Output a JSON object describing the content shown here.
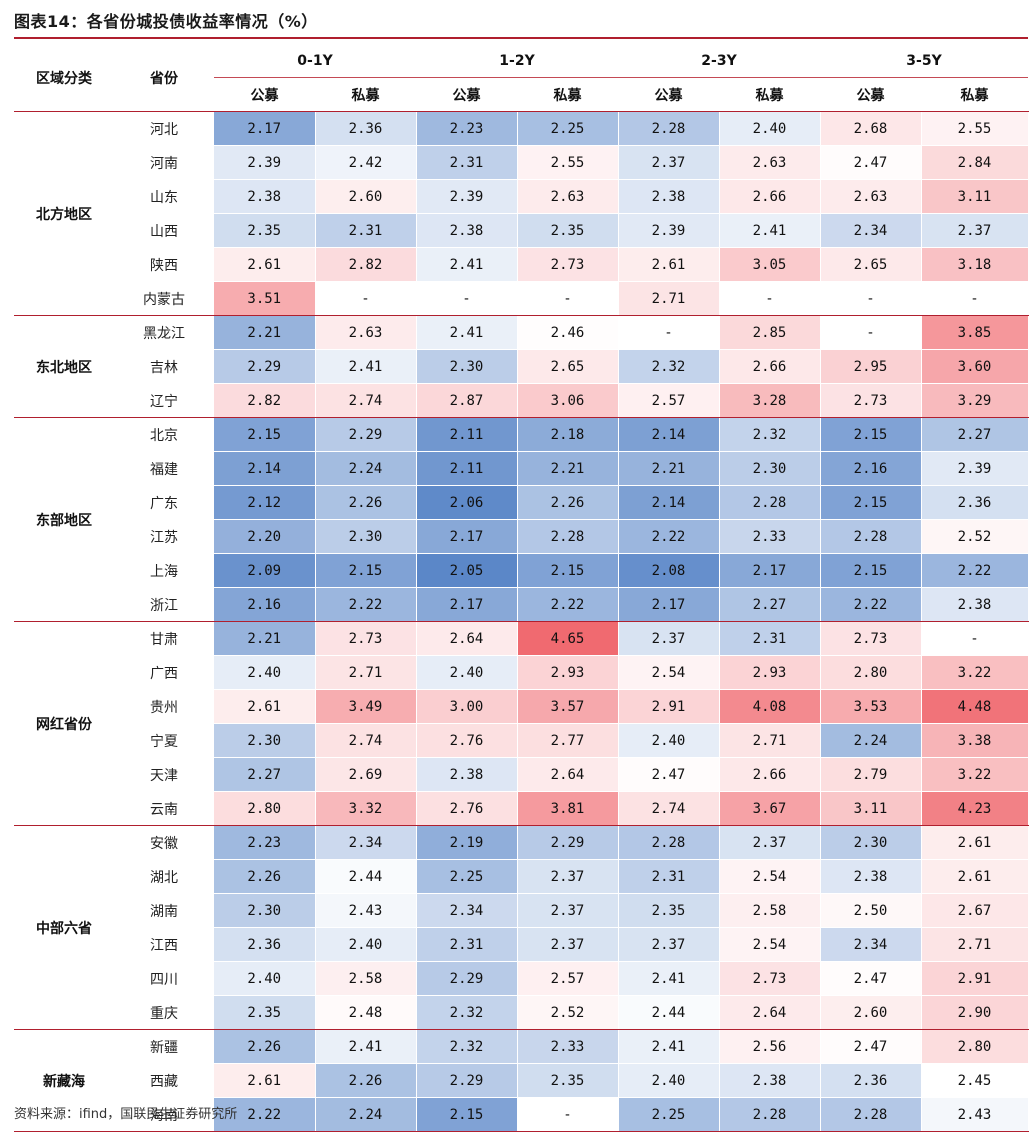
{
  "title": "图表14：各省份城投债收益率情况（%）",
  "source": "资料来源：ifind，国联民生证券研究所",
  "colors": {
    "low": "#5b87c8",
    "mid": "#ffffff",
    "high": "#f06a70",
    "rule": "#b01f2e"
  },
  "header": {
    "region_col": "区域分类",
    "province_col": "省份",
    "tenors": [
      "0-1Y",
      "1-2Y",
      "2-3Y",
      "3-5Y"
    ],
    "types": [
      "公募",
      "私募"
    ]
  },
  "groups": [
    {
      "region": "北方地区",
      "rows": [
        {
          "province": "河北",
          "values": [
            "2.17",
            "2.36",
            "2.23",
            "2.25",
            "2.28",
            "2.40",
            "2.68",
            "2.55"
          ]
        },
        {
          "province": "河南",
          "values": [
            "2.39",
            "2.42",
            "2.31",
            "2.55",
            "2.37",
            "2.63",
            "2.47",
            "2.84"
          ]
        },
        {
          "province": "山东",
          "values": [
            "2.38",
            "2.60",
            "2.39",
            "2.63",
            "2.38",
            "2.66",
            "2.63",
            "3.11"
          ]
        },
        {
          "province": "山西",
          "values": [
            "2.35",
            "2.31",
            "2.38",
            "2.35",
            "2.39",
            "2.41",
            "2.34",
            "2.37"
          ]
        },
        {
          "province": "陕西",
          "values": [
            "2.61",
            "2.82",
            "2.41",
            "2.73",
            "2.61",
            "3.05",
            "2.65",
            "3.18"
          ]
        },
        {
          "province": "内蒙古",
          "values": [
            "3.51",
            "-",
            "-",
            "-",
            "2.71",
            "-",
            "-",
            "-"
          ]
        }
      ]
    },
    {
      "region": "东北地区",
      "rows": [
        {
          "province": "黑龙江",
          "values": [
            "2.21",
            "2.63",
            "2.41",
            "2.46",
            "-",
            "2.85",
            "-",
            "3.85"
          ]
        },
        {
          "province": "吉林",
          "values": [
            "2.29",
            "2.41",
            "2.30",
            "2.65",
            "2.32",
            "2.66",
            "2.95",
            "3.60"
          ]
        },
        {
          "province": "辽宁",
          "values": [
            "2.82",
            "2.74",
            "2.87",
            "3.06",
            "2.57",
            "3.28",
            "2.73",
            "3.29"
          ]
        }
      ]
    },
    {
      "region": "东部地区",
      "rows": [
        {
          "province": "北京",
          "values": [
            "2.15",
            "2.29",
            "2.11",
            "2.18",
            "2.14",
            "2.32",
            "2.15",
            "2.27"
          ]
        },
        {
          "province": "福建",
          "values": [
            "2.14",
            "2.24",
            "2.11",
            "2.21",
            "2.21",
            "2.30",
            "2.16",
            "2.39"
          ]
        },
        {
          "province": "广东",
          "values": [
            "2.12",
            "2.26",
            "2.06",
            "2.26",
            "2.14",
            "2.28",
            "2.15",
            "2.36"
          ]
        },
        {
          "province": "江苏",
          "values": [
            "2.20",
            "2.30",
            "2.17",
            "2.28",
            "2.22",
            "2.33",
            "2.28",
            "2.52"
          ]
        },
        {
          "province": "上海",
          "values": [
            "2.09",
            "2.15",
            "2.05",
            "2.15",
            "2.08",
            "2.17",
            "2.15",
            "2.22"
          ]
        },
        {
          "province": "浙江",
          "values": [
            "2.16",
            "2.22",
            "2.17",
            "2.22",
            "2.17",
            "2.27",
            "2.22",
            "2.38"
          ]
        }
      ]
    },
    {
      "region": "网红省份",
      "rows": [
        {
          "province": "甘肃",
          "values": [
            "2.21",
            "2.73",
            "2.64",
            "4.65",
            "2.37",
            "2.31",
            "2.73",
            "-"
          ]
        },
        {
          "province": "广西",
          "values": [
            "2.40",
            "2.71",
            "2.40",
            "2.93",
            "2.54",
            "2.93",
            "2.80",
            "3.22"
          ]
        },
        {
          "province": "贵州",
          "values": [
            "2.61",
            "3.49",
            "3.00",
            "3.57",
            "2.91",
            "4.08",
            "3.53",
            "4.48"
          ]
        },
        {
          "province": "宁夏",
          "values": [
            "2.30",
            "2.74",
            "2.76",
            "2.77",
            "2.40",
            "2.71",
            "2.24",
            "3.38"
          ]
        },
        {
          "province": "天津",
          "values": [
            "2.27",
            "2.69",
            "2.38",
            "2.64",
            "2.47",
            "2.66",
            "2.79",
            "3.22"
          ]
        },
        {
          "province": "云南",
          "values": [
            "2.80",
            "3.32",
            "2.76",
            "3.81",
            "2.74",
            "3.67",
            "3.11",
            "4.23"
          ]
        }
      ]
    },
    {
      "region": "中部六省",
      "rows": [
        {
          "province": "安徽",
          "values": [
            "2.23",
            "2.34",
            "2.19",
            "2.29",
            "2.28",
            "2.37",
            "2.30",
            "2.61"
          ]
        },
        {
          "province": "湖北",
          "values": [
            "2.26",
            "2.44",
            "2.25",
            "2.37",
            "2.31",
            "2.54",
            "2.38",
            "2.61"
          ]
        },
        {
          "province": "湖南",
          "values": [
            "2.30",
            "2.43",
            "2.34",
            "2.37",
            "2.35",
            "2.58",
            "2.50",
            "2.67"
          ]
        },
        {
          "province": "江西",
          "values": [
            "2.36",
            "2.40",
            "2.31",
            "2.37",
            "2.37",
            "2.54",
            "2.34",
            "2.71"
          ]
        },
        {
          "province": "四川",
          "values": [
            "2.40",
            "2.58",
            "2.29",
            "2.57",
            "2.41",
            "2.73",
            "2.47",
            "2.91"
          ]
        },
        {
          "province": "重庆",
          "values": [
            "2.35",
            "2.48",
            "2.32",
            "2.52",
            "2.44",
            "2.64",
            "2.60",
            "2.90"
          ]
        }
      ]
    },
    {
      "region": "新藏海",
      "rows": [
        {
          "province": "新疆",
          "values": [
            "2.26",
            "2.41",
            "2.32",
            "2.33",
            "2.41",
            "2.56",
            "2.47",
            "2.80"
          ]
        },
        {
          "province": "西藏",
          "values": [
            "2.61",
            "2.26",
            "2.29",
            "2.35",
            "2.40",
            "2.38",
            "2.36",
            "2.45"
          ]
        },
        {
          "province": "海南",
          "values": [
            "2.22",
            "2.24",
            "2.15",
            "-",
            "2.25",
            "2.28",
            "2.28",
            "2.43"
          ]
        }
      ]
    }
  ]
}
